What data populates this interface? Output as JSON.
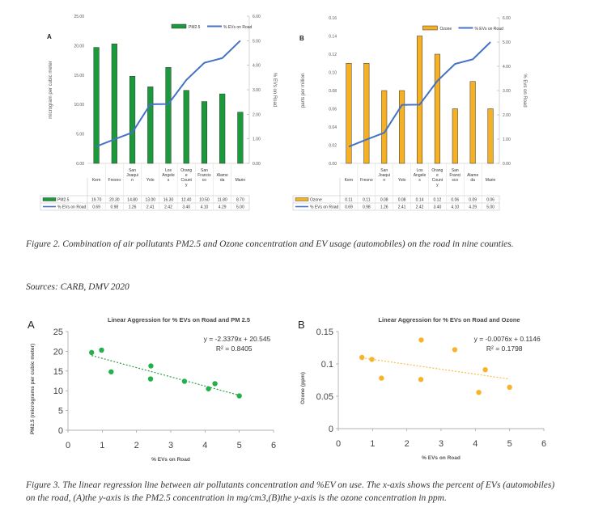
{
  "fig2_caption": "Figure 2. Combination of air pollutants PM2.5 and Ozone concentration and EV usage (automobiles) on the road in nine counties.",
  "sources": "Sources: CARB, DMV 2020",
  "fig3_caption": "Figure 3. The linear regression line between air pollutants concentration and %EV on use. The x-axis shows the percent of EVs (automobiles) on the road, (A)the y-axis is the PM2.5 concentration in mg/cm3,(B)the y-axis is the ozone concentration in ppm.",
  "colors": {
    "green": "#1a9a3a",
    "orange": "#f5b023",
    "line": "#4472c4",
    "trendGreen": "#2e9e3e",
    "trendOrange": "#f5c040",
    "scatterGreen": "#22b14c",
    "scatterOrange": "#f7b32b"
  },
  "chart_data": [
    {
      "id": "chartA",
      "type": "bar",
      "panel_label": "A",
      "categories": [
        "Kern",
        "Fresno",
        "San Joaqui n",
        "Yolo",
        "Los Angele s",
        "Orang e Count y",
        "San Francis co",
        "Alame da",
        "Marin"
      ],
      "series": [
        {
          "name": "PM2.5",
          "type": "bar",
          "values": [
            19.7,
            20.3,
            14.8,
            13.0,
            16.3,
            12.4,
            10.5,
            11.8,
            8.7
          ],
          "labels": [
            "19.70",
            "20.30",
            "14.80",
            "13.00",
            "16.30",
            "12.40",
            "10.50",
            "11.80",
            "8.70"
          ]
        },
        {
          "name": "% EVs on Road",
          "type": "line",
          "axis": "right",
          "values": [
            0.69,
            0.98,
            1.26,
            2.41,
            2.42,
            3.4,
            4.1,
            4.29,
            5.0
          ],
          "labels": [
            "0.69",
            "0.98",
            "1.26",
            "2.41",
            "2.42",
            "3.40",
            "4.10",
            "4.29",
            "5.00"
          ]
        }
      ],
      "ylabel": "microgram per cubic meter",
      "y2label": "% EVs on Road",
      "ylim": [
        0,
        25
      ],
      "yticks": [
        "0.00",
        "5.00",
        "10.00",
        "15.00",
        "20.00",
        "25.00"
      ],
      "y2lim": [
        0,
        6
      ],
      "y2ticks": [
        "0.00",
        "1.00",
        "2.00",
        "3.00",
        "4.00",
        "5.00",
        "6.00"
      ]
    },
    {
      "id": "chartB",
      "type": "bar",
      "panel_label": "B",
      "categories": [
        "Kern",
        "Fresno",
        "San Joaqui n",
        "Yolo",
        "Los Angele s",
        "Orang e Count y",
        "San Franci sco",
        "Alame da",
        "Marin"
      ],
      "series": [
        {
          "name": "Ozone",
          "type": "bar",
          "values": [
            0.11,
            0.11,
            0.08,
            0.08,
            0.14,
            0.12,
            0.06,
            0.09,
            0.06
          ],
          "labels": [
            "0.11",
            "0.11",
            "0.08",
            "0.08",
            "0.14",
            "0.12",
            "0.06",
            "0.09",
            "0.06"
          ]
        },
        {
          "name": "% EVs on Road",
          "type": "line",
          "axis": "right",
          "values": [
            0.69,
            0.98,
            1.26,
            2.41,
            2.42,
            3.4,
            4.1,
            4.29,
            5.0
          ],
          "labels": [
            "0.69",
            "0.98",
            "1.26",
            "2.41",
            "2.42",
            "3.40",
            "4.10",
            "4.29",
            "5.00"
          ]
        }
      ],
      "ylabel": "parts per million",
      "y2label": "% Evs on Road",
      "ylim": [
        0,
        0.16
      ],
      "yticks": [
        "0.00",
        "0.02",
        "0.04",
        "0.06",
        "0.08",
        "0.10",
        "0.12",
        "0.14",
        "0.16"
      ],
      "y2lim": [
        0,
        6
      ],
      "y2ticks": [
        "0.00",
        "1.00",
        "2.00",
        "3.00",
        "4.00",
        "5.00",
        "6.00"
      ]
    },
    {
      "id": "chartC",
      "type": "scatter",
      "panel_label": "A",
      "title": "Linear Aggression for % EVs on Road and PM 2.5",
      "xlabel": "% EVs on Road",
      "ylabel": "PM2.5 (micrograms per cubic meter)",
      "xlim": [
        0,
        6
      ],
      "ylim": [
        0,
        25
      ],
      "xticks": [
        "0",
        "1",
        "2",
        "3",
        "4",
        "5",
        "6"
      ],
      "yticks": [
        "0",
        "5",
        "10",
        "15",
        "20",
        "25"
      ],
      "points": [
        [
          0.69,
          19.7
        ],
        [
          0.98,
          20.3
        ],
        [
          1.26,
          14.8
        ],
        [
          2.41,
          13.0
        ],
        [
          2.42,
          16.3
        ],
        [
          3.4,
          12.4
        ],
        [
          4.1,
          10.5
        ],
        [
          4.29,
          11.8
        ],
        [
          5.0,
          8.7
        ]
      ],
      "trendline": {
        "slope": -2.3379,
        "intercept": 20.545,
        "x_range": [
          0.69,
          5.0
        ],
        "equation": "y = -2.3379x + 20.545",
        "r2": "R² = 0.8405"
      }
    },
    {
      "id": "chartD",
      "type": "scatter",
      "panel_label": "B",
      "title": "Linear Aggression for % EVs on Road and Ozone",
      "xlabel": "% EVs on Road",
      "ylabel": "Ozone (ppm)",
      "xlim": [
        0,
        6
      ],
      "ylim": [
        0,
        0.15
      ],
      "xticks": [
        "0",
        "1",
        "2",
        "3",
        "4",
        "5",
        "6"
      ],
      "yticks": [
        "0",
        "0.05",
        "0.1",
        "0.15"
      ],
      "points": [
        [
          0.69,
          0.11
        ],
        [
          0.98,
          0.107
        ],
        [
          1.26,
          0.078
        ],
        [
          2.41,
          0.076
        ],
        [
          2.42,
          0.137
        ],
        [
          3.4,
          0.122
        ],
        [
          4.1,
          0.056
        ],
        [
          4.29,
          0.091
        ],
        [
          5.0,
          0.064
        ]
      ],
      "trendline": {
        "slope": -0.0076,
        "intercept": 0.1146,
        "x_range": [
          0.69,
          5.0
        ],
        "equation": "y = -0.0076x + 0.1146",
        "r2": "R² = 0.1798"
      }
    }
  ]
}
